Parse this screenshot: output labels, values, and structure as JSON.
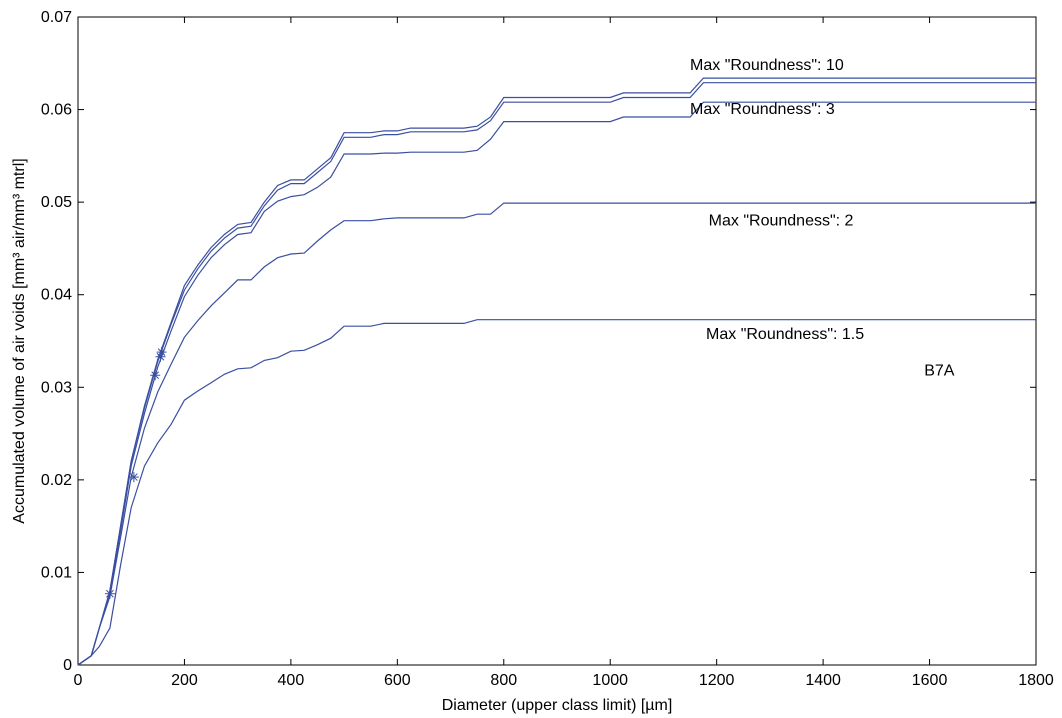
{
  "chart_data": {
    "type": "line",
    "xlabel": "Diameter (upper class limit) [µm]",
    "ylabel": "Accumulated volume of air voids [mm³ air/mm³ mtrl]",
    "xlim": [
      0,
      1800
    ],
    "ylim": [
      0,
      0.07
    ],
    "xticks": [
      0,
      200,
      400,
      600,
      800,
      1000,
      1200,
      1400,
      1600,
      1800
    ],
    "yticks": [
      0,
      0.01,
      0.02,
      0.03,
      0.04,
      0.05,
      0.06,
      0.07
    ],
    "ytick_labels": [
      "0",
      "0.01",
      "0.02",
      "0.03",
      "0.04",
      "0.05",
      "0.06",
      "0.07"
    ],
    "grid": false,
    "line_color": "#3a4fa0",
    "series": [
      {
        "name": "Max \"Roundness\": 10",
        "x": [
          0,
          25,
          40,
          60,
          80,
          100,
          125,
          150,
          175,
          200,
          225,
          250,
          275,
          300,
          325,
          350,
          375,
          400,
          425,
          450,
          475,
          500,
          550,
          575,
          600,
          625,
          650,
          700,
          725,
          750,
          775,
          800,
          1000,
          1025,
          1150,
          1175,
          1800
        ],
        "y": [
          0,
          0.001,
          0.004,
          0.008,
          0.015,
          0.022,
          0.028,
          0.033,
          0.037,
          0.041,
          0.0432,
          0.0451,
          0.0465,
          0.0476,
          0.0478,
          0.05,
          0.0518,
          0.0524,
          0.0524,
          0.0536,
          0.0548,
          0.0575,
          0.0575,
          0.0577,
          0.0577,
          0.058,
          0.058,
          0.058,
          0.058,
          0.0582,
          0.0592,
          0.0613,
          0.0613,
          0.0618,
          0.0618,
          0.0634,
          0.0634
        ]
      },
      {
        "name": "",
        "x": [
          0,
          25,
          40,
          60,
          80,
          100,
          125,
          150,
          175,
          200,
          225,
          250,
          275,
          300,
          325,
          350,
          375,
          400,
          425,
          450,
          475,
          500,
          550,
          575,
          600,
          625,
          650,
          700,
          725,
          750,
          775,
          800,
          1000,
          1025,
          1150,
          1175,
          1800
        ],
        "y": [
          0,
          0.001,
          0.004,
          0.008,
          0.015,
          0.022,
          0.0278,
          0.0328,
          0.0368,
          0.0405,
          0.0428,
          0.0447,
          0.0461,
          0.0472,
          0.0474,
          0.0496,
          0.0513,
          0.052,
          0.052,
          0.0532,
          0.0544,
          0.057,
          0.057,
          0.0573,
          0.0573,
          0.0576,
          0.0576,
          0.0576,
          0.0576,
          0.0578,
          0.0588,
          0.0608,
          0.0608,
          0.0613,
          0.0613,
          0.0629,
          0.0629
        ]
      },
      {
        "name": "Max \"Roundness\": 3",
        "x": [
          0,
          25,
          40,
          60,
          80,
          100,
          125,
          150,
          175,
          200,
          225,
          250,
          275,
          300,
          325,
          350,
          375,
          400,
          425,
          450,
          475,
          500,
          550,
          575,
          600,
          625,
          650,
          700,
          725,
          750,
          775,
          800,
          1000,
          1025,
          1150,
          1175,
          1800
        ],
        "y": [
          0,
          0.001,
          0.004,
          0.0077,
          0.0145,
          0.0215,
          0.0272,
          0.0322,
          0.0361,
          0.0398,
          0.0421,
          0.044,
          0.0454,
          0.0465,
          0.0467,
          0.049,
          0.0501,
          0.0506,
          0.0508,
          0.0516,
          0.0527,
          0.0552,
          0.0552,
          0.0553,
          0.0553,
          0.0554,
          0.0554,
          0.0554,
          0.0554,
          0.0556,
          0.0568,
          0.0587,
          0.0587,
          0.0592,
          0.0592,
          0.0608,
          0.0608
        ]
      },
      {
        "name": "Max \"Roundness\": 2",
        "x": [
          0,
          25,
          40,
          60,
          80,
          100,
          125,
          150,
          175,
          200,
          225,
          250,
          275,
          300,
          325,
          350,
          375,
          400,
          425,
          450,
          475,
          500,
          550,
          575,
          600,
          650,
          700,
          725,
          750,
          775,
          800,
          1800
        ],
        "y": [
          0,
          0.001,
          0.004,
          0.0074,
          0.0138,
          0.0203,
          0.0256,
          0.0295,
          0.0325,
          0.0354,
          0.0372,
          0.0388,
          0.0402,
          0.0416,
          0.0416,
          0.043,
          0.044,
          0.0444,
          0.0445,
          0.0458,
          0.047,
          0.048,
          0.048,
          0.0482,
          0.0483,
          0.0483,
          0.0483,
          0.0483,
          0.0487,
          0.0487,
          0.0499,
          0.0499
        ]
      },
      {
        "name": "Max \"Roundness\": 1.5",
        "x": [
          0,
          25,
          40,
          60,
          80,
          100,
          125,
          150,
          175,
          200,
          225,
          250,
          275,
          300,
          325,
          350,
          375,
          400,
          425,
          450,
          475,
          500,
          550,
          575,
          600,
          650,
          700,
          725,
          750,
          800,
          1800
        ],
        "y": [
          0,
          0.001,
          0.002,
          0.004,
          0.0108,
          0.017,
          0.0215,
          0.024,
          0.026,
          0.0286,
          0.0296,
          0.0305,
          0.0314,
          0.032,
          0.0321,
          0.0329,
          0.0332,
          0.0339,
          0.034,
          0.0346,
          0.0353,
          0.0366,
          0.0366,
          0.0369,
          0.0369,
          0.0369,
          0.0369,
          0.0369,
          0.0373,
          0.0373,
          0.0373
        ]
      }
    ],
    "markers": [
      {
        "x": 60,
        "y": 0.0077
      },
      {
        "x": 105,
        "y": 0.0203
      },
      {
        "x": 145,
        "y": 0.0313
      },
      {
        "x": 155,
        "y": 0.0333
      },
      {
        "x": 157,
        "y": 0.0338
      }
    ],
    "annotations": [
      {
        "text": "Max \"Roundness\": 10",
        "x": 1150,
        "y": 0.0643
      },
      {
        "text": "Max \"Roundness\": 3",
        "x": 1150,
        "y": 0.0595
      },
      {
        "text": "Max \"Roundness\": 2",
        "x": 1185,
        "y": 0.0475
      },
      {
        "text": "Max \"Roundness\": 1.5",
        "x": 1180,
        "y": 0.0352
      },
      {
        "text": "B7A",
        "x": 1590,
        "y": 0.0313
      }
    ]
  }
}
